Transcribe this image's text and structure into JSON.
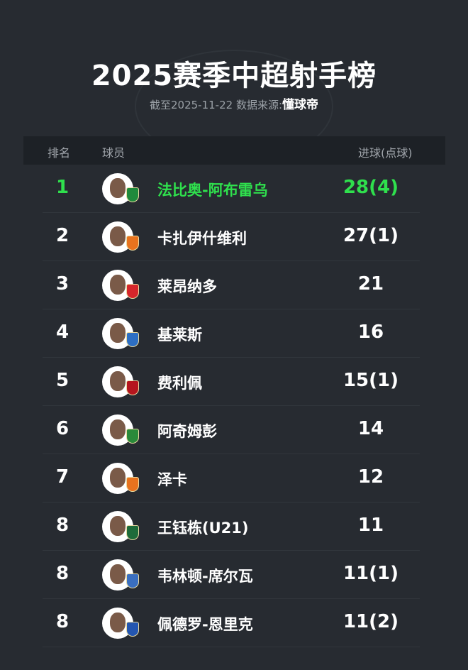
{
  "title": "2025赛季中超射手榜",
  "subtitle": {
    "prefix": "截至2025-11-22 数据来源:",
    "source": "懂球帝"
  },
  "header": {
    "rank": "排名",
    "player": "球员",
    "goals": "进球(点球)"
  },
  "accent": "#2fe04d",
  "rows": [
    {
      "rank": "1",
      "name": "法比奥-阿布雷乌",
      "goals": "28(4)",
      "badge": "#1f8a3c"
    },
    {
      "rank": "2",
      "name": "卡扎伊什维利",
      "goals": "27(1)",
      "badge": "#e8731e"
    },
    {
      "rank": "3",
      "name": "莱昂纳多",
      "goals": "21",
      "badge": "#d6262b"
    },
    {
      "rank": "4",
      "name": "基莱斯",
      "goals": "16",
      "badge": "#2d6fc4"
    },
    {
      "rank": "5",
      "name": "费利佩",
      "goals": "15(1)",
      "badge": "#b5161e"
    },
    {
      "rank": "6",
      "name": "阿奇姆彭",
      "goals": "14",
      "badge": "#2a8a3a"
    },
    {
      "rank": "7",
      "name": "泽卡",
      "goals": "12",
      "badge": "#e8731e"
    },
    {
      "rank": "8",
      "name": "王钰栋(U21)",
      "goals": "11",
      "badge": "#1e6b3a"
    },
    {
      "rank": "8",
      "name": "韦林顿-席尔瓦",
      "goals": "11(1)",
      "badge": "#3a6fc0"
    },
    {
      "rank": "8",
      "name": "佩德罗-恩里克",
      "goals": "11(2)",
      "badge": "#2456b0"
    }
  ]
}
